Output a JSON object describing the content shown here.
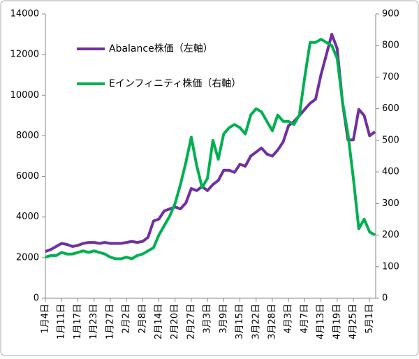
{
  "chart_data": {
    "type": "line",
    "categories": [
      "1月4日",
      null,
      null,
      "1月11日",
      null,
      null,
      "1月17日",
      null,
      null,
      "1月23日",
      null,
      null,
      "1月27日",
      null,
      null,
      "2月2日",
      null,
      null,
      "2月8日",
      null,
      null,
      "2月14日",
      null,
      null,
      "2月20日",
      null,
      null,
      "2月27日",
      null,
      null,
      "3月3日",
      null,
      null,
      "3月9日",
      null,
      null,
      "3月15日",
      null,
      null,
      "3月22日",
      null,
      null,
      "3月28日",
      null,
      null,
      "4月3日",
      null,
      null,
      "4月7日",
      null,
      null,
      "4月13日",
      null,
      null,
      "4月19日",
      null,
      null,
      "4月25日",
      null,
      null,
      "5月1日",
      null
    ],
    "series": [
      {
        "name": "Abalance株価（左軸）",
        "color": "#7030a0",
        "axis": "y",
        "values": [
          2300,
          2400,
          2550,
          2700,
          2650,
          2550,
          2600,
          2700,
          2750,
          2750,
          2700,
          2750,
          2700,
          2700,
          2700,
          2750,
          2800,
          2750,
          2800,
          3000,
          3800,
          3900,
          4300,
          4400,
          4500,
          4400,
          4700,
          5400,
          5300,
          5500,
          5300,
          5600,
          5800,
          6300,
          6300,
          6200,
          6600,
          6500,
          7000,
          7200,
          7400,
          7100,
          7000,
          7300,
          7700,
          8500,
          8700,
          9000,
          9300,
          9600,
          9800,
          11000,
          12000,
          13000,
          12300,
          9600,
          7800,
          7800,
          9300,
          9000,
          8000,
          8200
        ]
      },
      {
        "name": "Eインフィニティ株価（右軸）",
        "color": "#00b050",
        "axis": "y2",
        "values": [
          130,
          135,
          135,
          145,
          140,
          140,
          145,
          150,
          145,
          150,
          145,
          140,
          130,
          125,
          125,
          130,
          125,
          135,
          140,
          150,
          160,
          200,
          230,
          260,
          300,
          360,
          430,
          510,
          420,
          350,
          380,
          500,
          440,
          520,
          540,
          550,
          540,
          520,
          580,
          600,
          590,
          560,
          530,
          580,
          560,
          560,
          550,
          580,
          700,
          810,
          810,
          820,
          810,
          800,
          760,
          620,
          520,
          380,
          220,
          250,
          210,
          200
        ]
      }
    ],
    "ylim": [
      0,
      14000
    ],
    "yticks": [
      0,
      2000,
      4000,
      6000,
      8000,
      10000,
      12000,
      14000
    ],
    "y2lim": [
      0,
      900
    ],
    "y2ticks": [
      0,
      100,
      200,
      300,
      400,
      500,
      600,
      700,
      800,
      900
    ],
    "grid": false,
    "legend": "upper left"
  }
}
